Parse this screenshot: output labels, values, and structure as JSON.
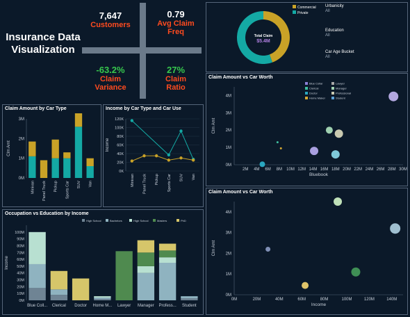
{
  "page_title": "Insurance Data Visualization",
  "kpis": {
    "customers": {
      "value": "7,647",
      "label": "Customers"
    },
    "avg_claim_freq": {
      "value": "0.79",
      "label": "Avg Claim Freq"
    },
    "claim_variance": {
      "value": "-63.2%",
      "label": "Claim Variance"
    },
    "claim_ratio": {
      "value": "27%",
      "label": "Claim Ratio"
    }
  },
  "filters": [
    {
      "title": "Urbanicity",
      "value": "All"
    },
    {
      "title": "Education",
      "value": "All"
    },
    {
      "title": "Car Age Bucket",
      "value": "All"
    }
  ],
  "colors": {
    "gold": "#c9a227",
    "teal": "#14a9a4",
    "background": "#0b1929",
    "kpi_negative": "#ff4b1f",
    "kpi_positive": "#37c84d"
  },
  "chart_data": [
    {
      "id": "donut",
      "type": "pie",
      "center_title": "Total Claim",
      "center_value": "$5.4M",
      "legend": [
        "Commercial",
        "Private"
      ],
      "values": [
        2.4,
        3.0
      ],
      "colors": [
        "#c9a227",
        "#14a9a4"
      ]
    },
    {
      "id": "car_type",
      "type": "bar",
      "title": "Claim Amount by Car Type",
      "ylabel": "Clm Amt",
      "categories": [
        "Minivan",
        "Panel Truck",
        "Pickup",
        "Sports Car",
        "SUV",
        "Van"
      ],
      "ylim": [
        0,
        3.0
      ],
      "yticks": [
        "0M",
        "1M",
        "2M",
        "3M"
      ],
      "series": [
        {
          "values": [
            1.1,
            0.0,
            1.0,
            1.0,
            2.6,
            0.6
          ],
          "color": "#14a9a4"
        },
        {
          "values": [
            0.75,
            0.9,
            0.95,
            0.3,
            0.8,
            0.4
          ],
          "color": "#c9a227"
        }
      ]
    },
    {
      "id": "income_line",
      "type": "line",
      "title": "Income by Car Type and Car Use",
      "ylabel": "Income",
      "categories": [
        "Minivan",
        "Panel Truck",
        "Pickup",
        "Sports Car",
        "SUV",
        "Van"
      ],
      "ylim": [
        0,
        120000
      ],
      "yticks": [
        "0K",
        "20K",
        "40K",
        "60K",
        "80K",
        "100K",
        "120K"
      ],
      "series": [
        {
          "values": [
            116000,
            null,
            null,
            37000,
            92000,
            27000
          ],
          "color": "#14a9a4"
        },
        {
          "values": [
            23000,
            35000,
            35000,
            25000,
            30000,
            25000
          ],
          "color": "#c9a227"
        }
      ]
    },
    {
      "id": "occupation",
      "type": "bar",
      "title": "Occupation vs Education by Income",
      "ylabel": "Income",
      "legend": [
        "High School",
        "Bachelors",
        "High School",
        "Masters",
        "PhD"
      ],
      "legend_colors": [
        "#6f8494",
        "#8fb3c0",
        "#b8e0d1",
        "#4f8a4f",
        "#d6c66a"
      ],
      "categories": [
        "Blue Coll...",
        "Clerical",
        "Doctor",
        "Home M...",
        "Lawyer",
        "Manager",
        "Profess...",
        "Student"
      ],
      "ylim": [
        0,
        110
      ],
      "yticks": [
        "0M",
        "10M",
        "20M",
        "30M",
        "40M",
        "50M",
        "60M",
        "70M",
        "80M",
        "90M",
        "100M"
      ],
      "series": [
        {
          "name": "High School",
          "values": [
            18,
            8,
            0,
            2,
            0,
            0,
            0,
            3
          ],
          "color": "#6f8494"
        },
        {
          "name": "Bachelors",
          "values": [
            35,
            8,
            0,
            2,
            0,
            40,
            55,
            3
          ],
          "color": "#8fb3c0"
        },
        {
          "name": "High School",
          "values": [
            47,
            0,
            0,
            2,
            0,
            10,
            8,
            0
          ],
          "color": "#b8e0d1"
        },
        {
          "name": "Masters",
          "values": [
            0,
            0,
            0,
            0,
            72,
            20,
            10,
            0
          ],
          "color": "#4f8a4f"
        },
        {
          "name": "PhD",
          "values": [
            0,
            27,
            32,
            0,
            0,
            18,
            10,
            0
          ],
          "color": "#d6c66a"
        }
      ]
    },
    {
      "id": "bluebook",
      "type": "scatter",
      "title": "Claim Amount vs Car Worth",
      "xlabel": "Bluebook",
      "ylabel": "Clm Amt",
      "xticks": [
        "2M",
        "4M",
        "6M",
        "8M",
        "10M",
        "12M",
        "14M",
        "16M",
        "18M",
        "20M",
        "22M",
        "24M",
        "26M",
        "28M",
        "30M"
      ],
      "yticks": [
        "0M",
        "1M",
        "2M",
        "3M",
        "4M"
      ],
      "xlim": [
        0,
        30
      ],
      "ylim": [
        0,
        4.5
      ],
      "legend": [
        "Blue Collar",
        "Lawyer",
        "Clerical",
        "Manager",
        "Doctor",
        "Professional",
        "Home Maker",
        "Student"
      ],
      "legend_colors": [
        "#8a7fd6",
        "#a8a8a8",
        "#3fbf9f",
        "#9fd0b0",
        "#2aa7c0",
        "#c9c9b0",
        "#d6a933",
        "#5a9fd6"
      ],
      "points": [
        {
          "x": 5,
          "y": 0.03,
          "r": 4,
          "color": "#2aa7c0"
        },
        {
          "x": 7.7,
          "y": 1.3,
          "r": 1.5,
          "color": "#3fbf9f"
        },
        {
          "x": 8.3,
          "y": 0.95,
          "r": 1.5,
          "color": "#d6a933"
        },
        {
          "x": 14.2,
          "y": 0.8,
          "r": 6,
          "color": "#a9a0e0"
        },
        {
          "x": 16.9,
          "y": 2.0,
          "r": 5,
          "color": "#9fd0b0"
        },
        {
          "x": 18.6,
          "y": 1.8,
          "r": 6,
          "color": "#c9c9b0"
        },
        {
          "x": 18.0,
          "y": 0.6,
          "r": 6,
          "color": "#7fc9d9"
        },
        {
          "x": 28.3,
          "y": 3.95,
          "r": 7,
          "color": "#b3a8e0"
        }
      ]
    },
    {
      "id": "income_scatter",
      "type": "scatter",
      "title": "Claim Amount vs Car Worth",
      "xlabel": "Income",
      "ylabel": "Clm Amt",
      "xticks": [
        "0M",
        "20M",
        "40M",
        "60M",
        "80M",
        "100M",
        "120M",
        "140M"
      ],
      "yticks": [
        "0M",
        "1M",
        "2M",
        "3M",
        "4M"
      ],
      "xlim": [
        0,
        150
      ],
      "ylim": [
        0,
        4.5
      ],
      "points": [
        {
          "x": 30,
          "y": 2.2,
          "r": 3.5,
          "color": "#7f8fb5"
        },
        {
          "x": 63,
          "y": 0.45,
          "r": 5,
          "color": "#e0c46a"
        },
        {
          "x": 92,
          "y": 4.5,
          "r": 6,
          "color": "#bfe0b8"
        },
        {
          "x": 108,
          "y": 1.1,
          "r": 6.5,
          "color": "#3f8f55"
        },
        {
          "x": 143,
          "y": 3.2,
          "r": 7.5,
          "color": "#9fbfd0"
        }
      ]
    }
  ]
}
